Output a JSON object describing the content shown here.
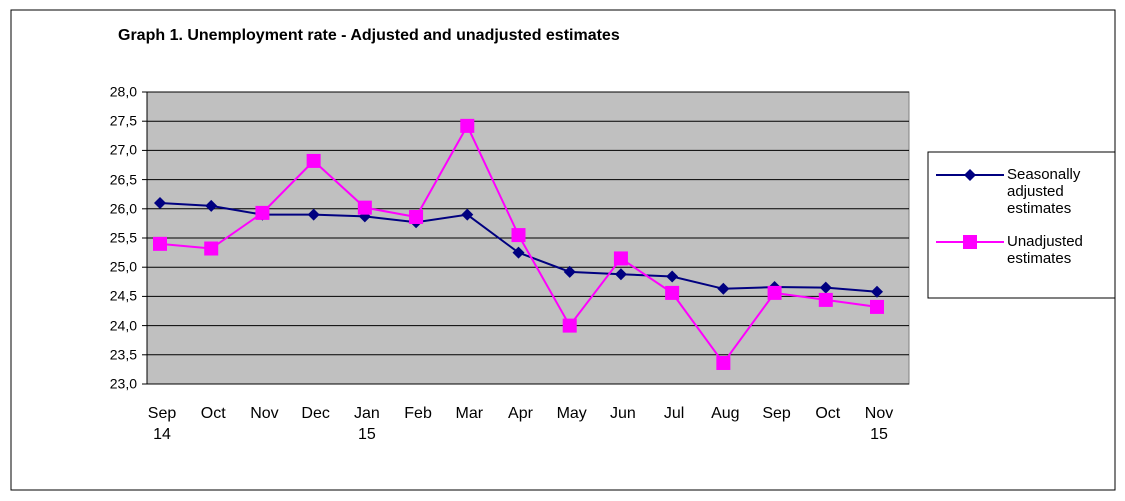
{
  "chart_data": {
    "type": "line",
    "title": "Graph 1. Unemployment rate - Adjusted and unadjusted estimates",
    "categories": [
      "Sep 14",
      "Oct",
      "Nov",
      "Dec",
      "Jan 15",
      "Feb",
      "Mar",
      "Apr",
      "May",
      "Jun",
      "Jul",
      "Aug",
      "Sep",
      "Oct",
      "Nov 15"
    ],
    "series": [
      {
        "name": "Seasonally adjusted estimates",
        "color": "#000080",
        "marker": "diamond",
        "values": [
          26.1,
          26.05,
          25.9,
          25.9,
          25.87,
          25.77,
          25.9,
          25.25,
          24.92,
          24.88,
          24.84,
          24.63,
          24.66,
          24.65,
          24.58
        ]
      },
      {
        "name": "Unadjusted estimates",
        "color": "#ff00ff",
        "marker": "square",
        "values": [
          25.4,
          25.32,
          25.93,
          26.82,
          26.02,
          25.86,
          27.42,
          25.55,
          24.0,
          25.15,
          24.56,
          23.36,
          24.56,
          24.44,
          24.32
        ]
      }
    ],
    "ylim": [
      23,
      28
    ],
    "yticks": [
      {
        "value": 23,
        "label": "23,0"
      },
      {
        "value": 23.5,
        "label": "23,5"
      },
      {
        "value": 24,
        "label": "24,0"
      },
      {
        "value": 24.5,
        "label": "24,5"
      },
      {
        "value": 25,
        "label": "25,0"
      },
      {
        "value": 25.5,
        "label": "25,5"
      },
      {
        "value": 26,
        "label": "26,0"
      },
      {
        "value": 26.5,
        "label": "26,5"
      },
      {
        "value": 27,
        "label": "27,0"
      },
      {
        "value": 27.5,
        "label": "27,5"
      },
      {
        "value": 28,
        "label": "28,0"
      }
    ],
    "grid": true,
    "plot_background": "#c0c0c0",
    "legend": "right"
  }
}
